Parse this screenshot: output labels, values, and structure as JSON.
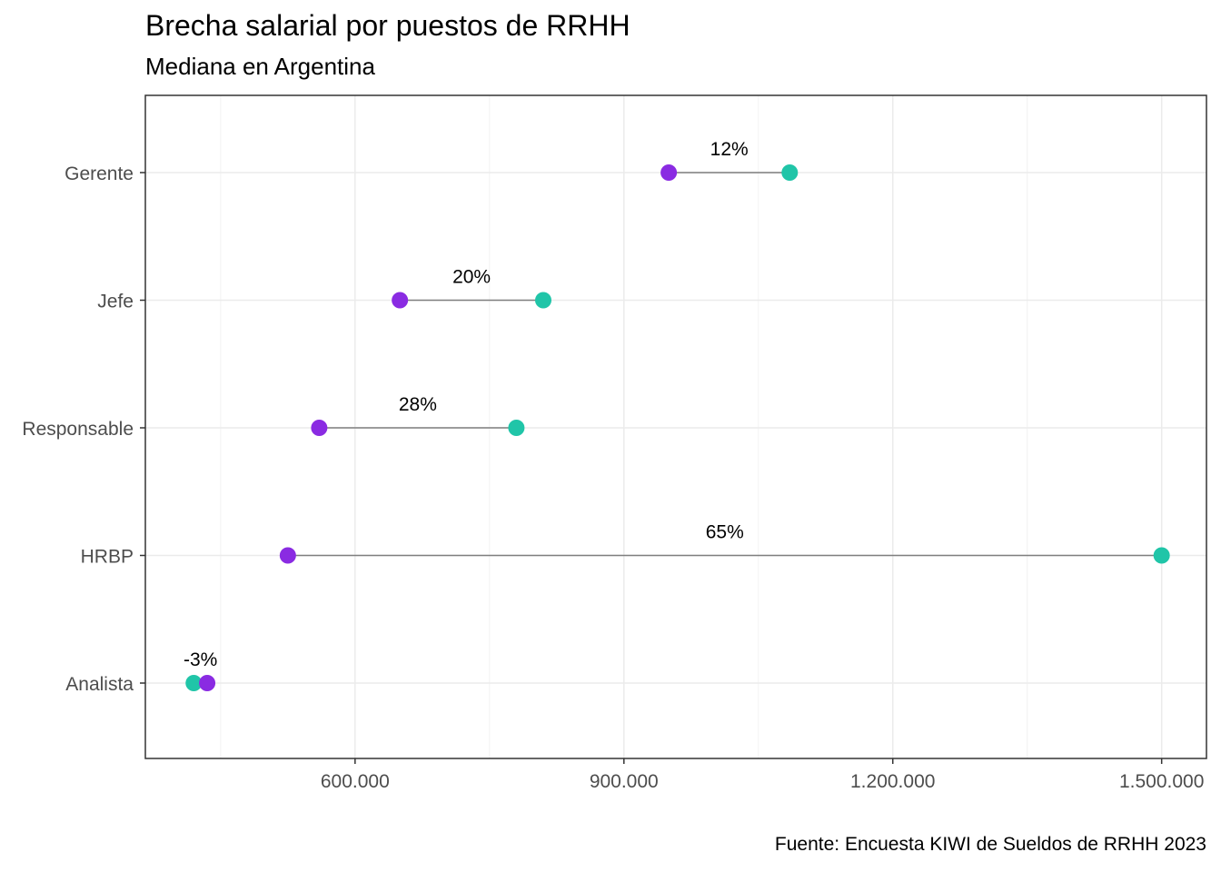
{
  "chart_data": {
    "type": "dumbbell",
    "title": "Brecha salarial por puestos de RRHH",
    "subtitle": "Mediana en Argentina",
    "caption": "Fuente: Encuesta KIWI de Sueldos de RRHH 2023",
    "xlabel": "",
    "ylabel": "",
    "xlim": [
      366000,
      1550000
    ],
    "x_ticks": [
      600000,
      900000,
      1200000,
      1500000
    ],
    "x_tick_labels": [
      "600.000",
      "900.000",
      "1.200.000",
      "1.500.000"
    ],
    "grid": true,
    "categories": [
      "Gerente",
      "Jefe",
      "Responsable",
      "HRBP",
      "Analista"
    ],
    "series": [
      {
        "values": [
          950000,
          650000,
          560000,
          525000,
          435000
        ],
        "color": "#8a2be2"
      },
      {
        "values": [
          1085000,
          810000,
          780000,
          1500000,
          420000
        ],
        "color": "#20c5a8"
      }
    ],
    "gap_labels": [
      "12%",
      "20%",
      "28%",
      "65%",
      "-3%"
    ]
  }
}
